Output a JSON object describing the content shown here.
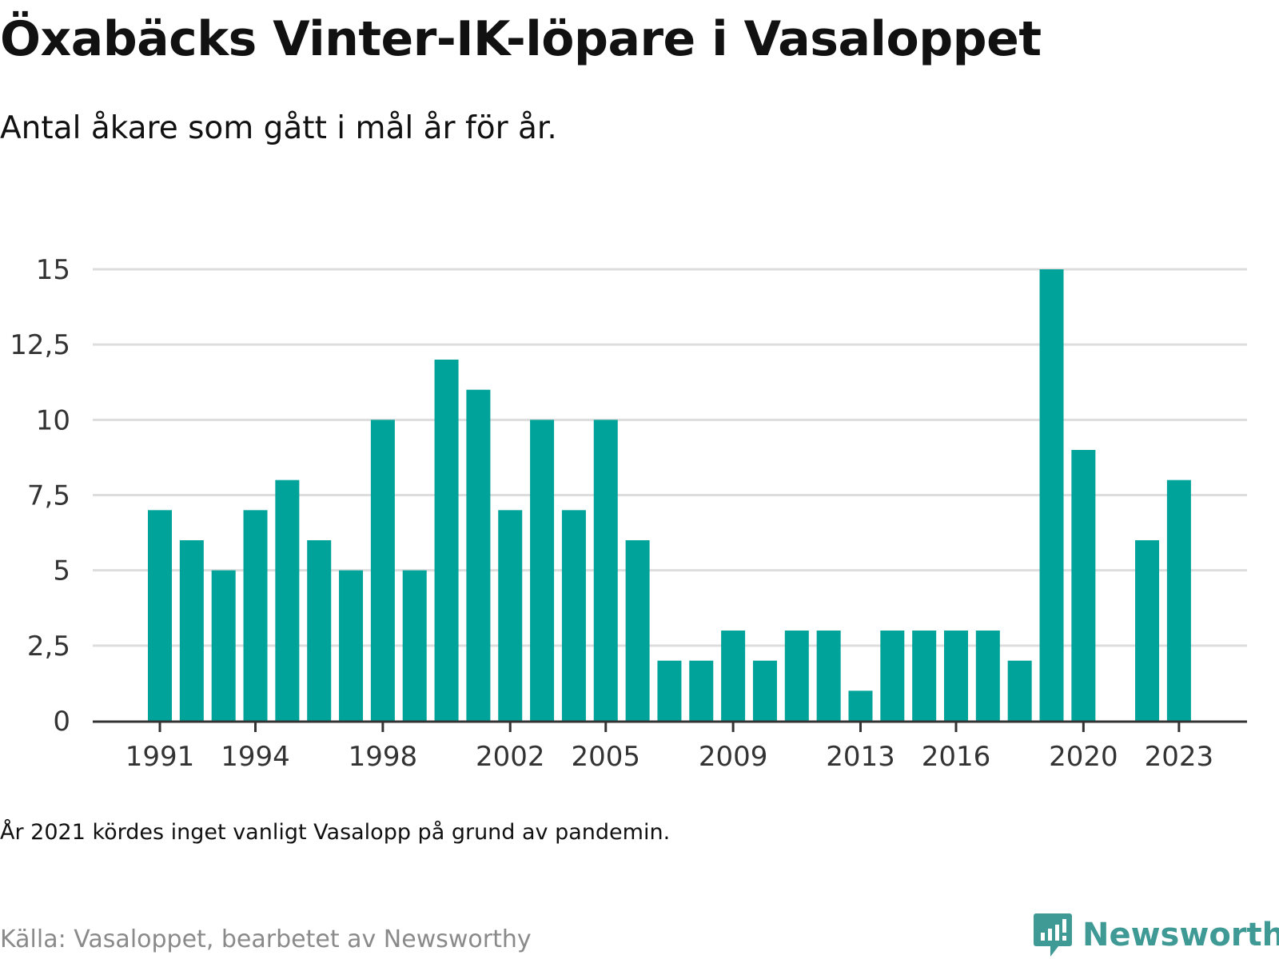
{
  "title": "Öxabäcks Vinter-IK-löpare i Vasaloppet",
  "subtitle": "Antal åkare som gått i mål år för år.",
  "note": "År 2021 kördes inget vanligt Vasalopp på grund av pandemin.",
  "source": "Källa: Vasaloppet, bearbetet av Newsworthy",
  "brand": {
    "name": "Newsworthy",
    "icon": "newsworthy-logo-icon"
  },
  "colors": {
    "bar": "#00a39a",
    "grid": "#dddddd",
    "axis": "#333333",
    "brand": "#3f9a95"
  },
  "chart_data": {
    "type": "bar",
    "title": "Öxabäcks Vinter-IK-löpare i Vasaloppet",
    "xlabel": "",
    "ylabel": "",
    "x": [
      1991,
      1992,
      1993,
      1994,
      1995,
      1996,
      1997,
      1998,
      1999,
      2000,
      2001,
      2002,
      2003,
      2004,
      2005,
      2006,
      2007,
      2008,
      2009,
      2010,
      2011,
      2012,
      2013,
      2014,
      2015,
      2016,
      2017,
      2018,
      2019,
      2020,
      2021,
      2022,
      2023
    ],
    "values": [
      7,
      6,
      5,
      7,
      8,
      6,
      5,
      10,
      5,
      12,
      11,
      7,
      10,
      7,
      10,
      6,
      2,
      2,
      3,
      2,
      3,
      3,
      1,
      3,
      3,
      3,
      3,
      2,
      15,
      9,
      null,
      6,
      8
    ],
    "ylim": [
      0,
      15
    ],
    "yticks": [
      0,
      2.5,
      5,
      7.5,
      10,
      12.5,
      15
    ],
    "ytick_labels": [
      "0",
      "2,5",
      "5",
      "7,5",
      "10",
      "12,5",
      "15"
    ],
    "xticks": [
      1991,
      1994,
      1998,
      2002,
      2005,
      2009,
      2013,
      2016,
      2020,
      2023
    ],
    "xtick_labels": [
      "1991",
      "1994",
      "1998",
      "2002",
      "2005",
      "2009",
      "2013",
      "2016",
      "2020",
      "2023"
    ],
    "grid": true,
    "legend": "none"
  }
}
